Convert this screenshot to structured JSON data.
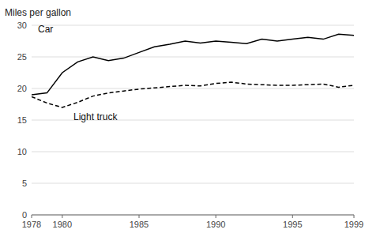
{
  "chart_data": {
    "type": "line",
    "ylabel": "Miles per gallon",
    "x": [
      1978,
      1979,
      1980,
      1981,
      1982,
      1983,
      1984,
      1985,
      1986,
      1987,
      1988,
      1989,
      1990,
      1991,
      1992,
      1993,
      1994,
      1995,
      1996,
      1997,
      1998,
      1999
    ],
    "series": [
      {
        "name": "Car",
        "color": "#000000",
        "line_style": "solid",
        "values": [
          19.0,
          19.3,
          22.5,
          24.2,
          25.0,
          24.4,
          24.8,
          25.7,
          26.6,
          27.0,
          27.5,
          27.2,
          27.5,
          27.3,
          27.1,
          27.8,
          27.5,
          27.8,
          28.1,
          27.8,
          28.6,
          28.4
        ]
      },
      {
        "name": "Light truck",
        "color": "#000000",
        "line_style": "dashed",
        "values": [
          18.7,
          17.7,
          17.0,
          17.8,
          18.8,
          19.3,
          19.6,
          19.9,
          20.1,
          20.3,
          20.5,
          20.4,
          20.8,
          21.0,
          20.7,
          20.6,
          20.5,
          20.5,
          20.6,
          20.7,
          20.2,
          20.5
        ]
      }
    ],
    "xlim": [
      1978,
      1999
    ],
    "ylim": [
      0,
      30
    ],
    "xticks": [
      1978,
      1980,
      1985,
      1990,
      1995,
      1999
    ],
    "yticks": [
      0,
      5,
      10,
      15,
      20,
      25,
      30
    ],
    "grid": true
  }
}
